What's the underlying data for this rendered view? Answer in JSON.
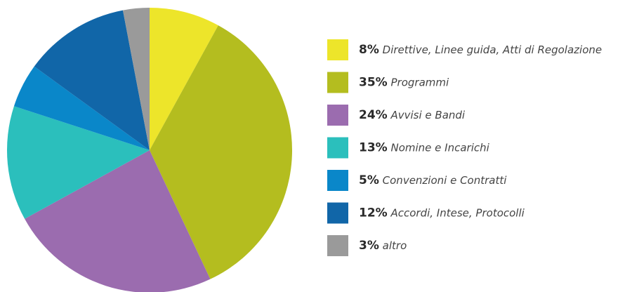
{
  "chart_data": {
    "type": "pie",
    "categories": [
      "Direttive, Linee guida, Atti di Regolazione",
      "Programmi",
      "Avvisi e Bandi",
      "Nomine e Incarichi",
      "Convenzioni e Contratti",
      "Accordi, Intese, Protocolli",
      "altro"
    ],
    "values": [
      8,
      35,
      24,
      13,
      5,
      12,
      3
    ],
    "value_labels": [
      "8%",
      "35%",
      "24%",
      "13%",
      "5%",
      "12%",
      "3%"
    ],
    "colors": [
      "#ede52a",
      "#b4bd1f",
      "#9b6caf",
      "#2bbfbc",
      "#0a87c9",
      "#1166a8",
      "#9a9a9a"
    ]
  }
}
